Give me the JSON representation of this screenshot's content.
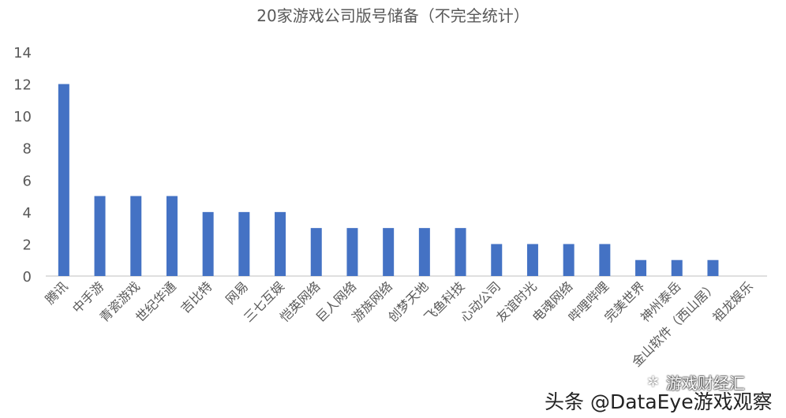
{
  "chart_data": {
    "type": "bar",
    "title": "20家游戏公司版号储备（不完全统计）",
    "categories": [
      "腾讯",
      "中手游",
      "青瓷游戏",
      "世纪华通",
      "吉比特",
      "网易",
      "三七互娱",
      "恺英网络",
      "巨人网络",
      "游族网络",
      "创梦天地",
      "飞鱼科技",
      "心动公司",
      "友谊时光",
      "电魂网络",
      "哔哩哔哩",
      "完美世界",
      "神州泰岳",
      "金山软件（西山居）",
      "祖龙娱乐"
    ],
    "values": [
      12,
      5,
      5,
      5,
      4,
      4,
      4,
      3,
      3,
      3,
      3,
      3,
      2,
      2,
      2,
      2,
      1,
      1,
      1,
      0
    ],
    "ylim": [
      0,
      14
    ],
    "yticks": [
      0,
      2,
      4,
      6,
      8,
      10,
      12,
      14
    ],
    "bar_color": "#4472C4",
    "grid": false
  },
  "watermark": {
    "line1": "游戏财经汇",
    "line2": "头条 @DataEye游戏观察"
  }
}
